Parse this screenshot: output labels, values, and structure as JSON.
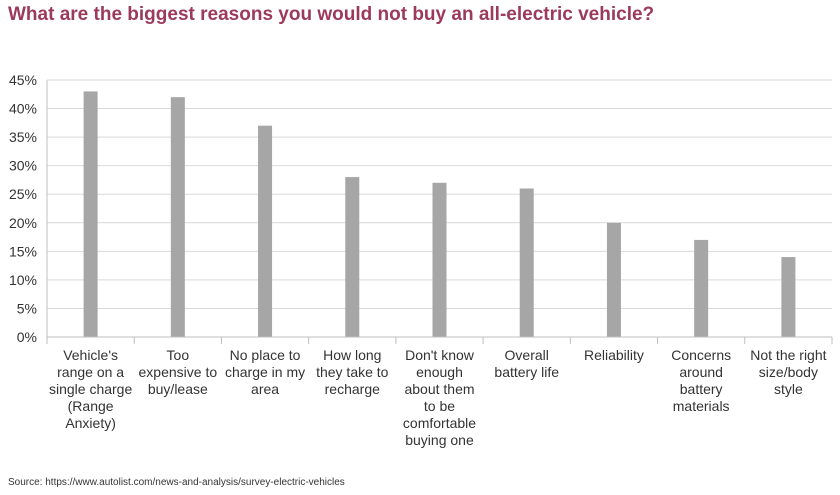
{
  "chart_data": {
    "type": "bar",
    "title": "What are the biggest reasons you would not buy an all-electric vehicle?",
    "categories": [
      [
        "Vehicle's",
        "range on a",
        "single charge",
        "(Range",
        "Anxiety)"
      ],
      [
        "Too",
        "expensive to",
        "buy/lease"
      ],
      [
        "No place to",
        "charge in my",
        "area"
      ],
      [
        "How long",
        "they take to",
        "recharge"
      ],
      [
        "Don't know",
        "enough",
        "about them",
        "to be",
        "comfortable",
        "buying one"
      ],
      [
        "Overall",
        "battery life"
      ],
      [
        "Reliability"
      ],
      [
        "Concerns",
        "around",
        "battery",
        "materials"
      ],
      [
        "Not the right",
        "size/body",
        "style"
      ]
    ],
    "values": [
      43,
      42,
      37,
      28,
      27,
      26,
      20,
      17,
      14
    ],
    "ylim": [
      0,
      45
    ],
    "ytick_step": 5,
    "ytick_labels": [
      "0%",
      "5%",
      "10%",
      "15%",
      "20%",
      "25%",
      "30%",
      "35%",
      "40%",
      "45%"
    ],
    "grid": true,
    "bar_color": "#a6a6a6",
    "grid_color": "#d9d9d9",
    "title_color": "#9b3a5a"
  },
  "source": "Source: https://www.autolist.com/news-and-analysis/survey-electric-vehicles"
}
